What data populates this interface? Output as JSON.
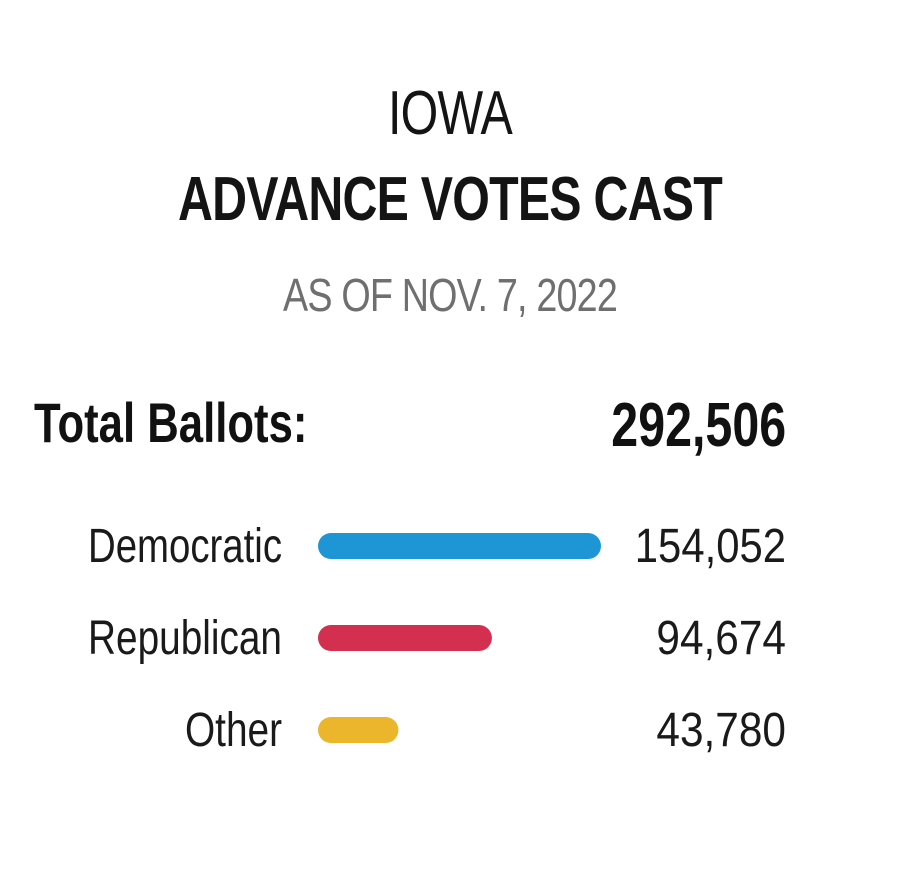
{
  "header": {
    "state": "IOWA",
    "title": "ADVANCE VOTES CAST",
    "date": "AS OF NOV. 7, 2022"
  },
  "total": {
    "label": "Total Ballots:",
    "value": "292,506"
  },
  "chart_data": {
    "type": "bar",
    "orientation": "horizontal",
    "categories": [
      "Democratic",
      "Republican",
      "Other"
    ],
    "values": [
      154052,
      94674,
      43780
    ],
    "value_labels": [
      "154,052",
      "94,674",
      "43,780"
    ],
    "colors": [
      "#1e96d6",
      "#d3304f",
      "#ebb52c"
    ],
    "xlim": [
      0,
      154052
    ],
    "grid": false,
    "legend": "none"
  }
}
